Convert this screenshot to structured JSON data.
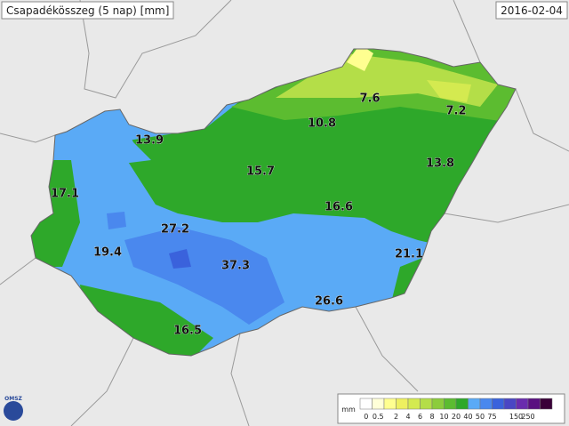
{
  "header": {
    "title": "Csapadékösszeg (5 nap) [mm]",
    "date": "2016-02-04"
  },
  "stations": [
    13.9,
    17.1,
    19.4,
    27.2,
    37.3,
    16.5,
    15.7,
    10.8,
    7.6,
    7.2,
    13.8,
    16.6,
    21.1,
    26.6
  ],
  "legend": {
    "unit": "mm",
    "labels": [
      "0",
      "0.5",
      "2",
      "4",
      "6",
      "8",
      "10",
      "20",
      "40",
      "50",
      "75",
      "150",
      "250"
    ],
    "colors": [
      "#ffffff",
      "#ffffd8",
      "#ffff90",
      "#eef060",
      "#d4ea50",
      "#b4de48",
      "#8ccc3c",
      "#5cbc30",
      "#2ea82a",
      "#5aaaf6",
      "#4a88ee",
      "#3a62dc",
      "#4a46c4",
      "#6a2cae",
      "#5a1080",
      "#3a0038"
    ]
  },
  "logo": "OMSZ"
}
